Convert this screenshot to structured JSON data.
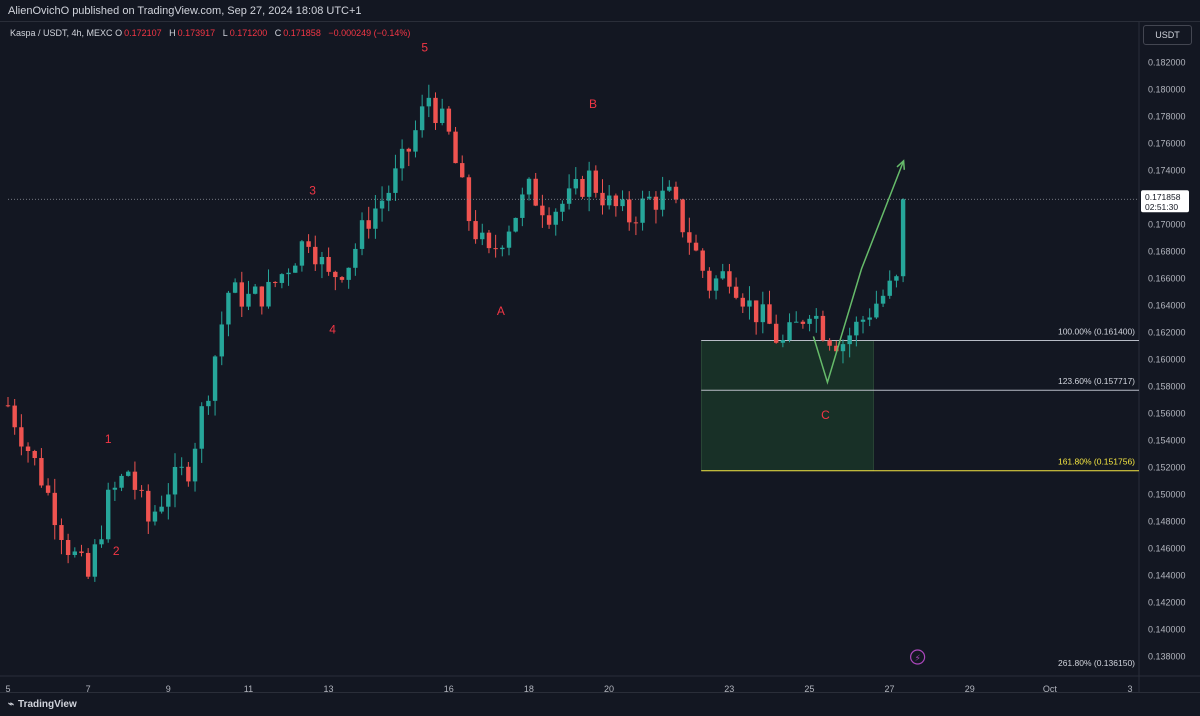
{
  "header": {
    "publisher_line": "AlienOvichO published on TradingView.com, Sep 27, 2024 18:08 UTC+1"
  },
  "legend": {
    "symbol": "Kaspa / USDT, 4h, MEXC",
    "o_label": "O",
    "o_value": "0.172107",
    "h_label": "H",
    "h_value": "0.173917",
    "l_label": "L",
    "l_value": "0.171200",
    "c_label": "C",
    "c_value": "0.171858",
    "change": "−0.000249 (−0.14%)"
  },
  "currency": "USDT",
  "footer": {
    "logo_text": "TradingView"
  },
  "colors": {
    "background": "#131722",
    "up": "#26a69a",
    "down": "#ef5350",
    "wave_label": "#f23645",
    "projection_arrow": "#66bb6a",
    "fib_highlight": "#f5e642",
    "zone_fill": "#1b3a2a"
  },
  "chart_data": {
    "type": "candlestick",
    "symbol": "Kaspa / USDT",
    "interval": "4h",
    "exchange": "MEXC",
    "ylim": [
      0.137,
      0.1835
    ],
    "y_ticks": [
      "0.182000",
      "0.180000",
      "0.178000",
      "0.176000",
      "0.174000",
      "0.172000",
      "0.170000",
      "0.168000",
      "0.166000",
      "0.164000",
      "0.162000",
      "0.160000",
      "0.158000",
      "0.156000",
      "0.154000",
      "0.152000",
      "0.150000",
      "0.148000",
      "0.146000",
      "0.144000",
      "0.142000",
      "0.140000",
      "0.138000"
    ],
    "x_ticks": [
      {
        "label": "5",
        "day": 5
      },
      {
        "label": "7",
        "day": 7
      },
      {
        "label": "9",
        "day": 9
      },
      {
        "label": "11",
        "day": 11
      },
      {
        "label": "13",
        "day": 13
      },
      {
        "label": "16",
        "day": 16
      },
      {
        "label": "18",
        "day": 18
      },
      {
        "label": "20",
        "day": 20
      },
      {
        "label": "23",
        "day": 23
      },
      {
        "label": "25",
        "day": 25
      },
      {
        "label": "27",
        "day": 27
      },
      {
        "label": "29",
        "day": 29
      },
      {
        "label": "Oct",
        "day": 31
      },
      {
        "label": "3",
        "day": 33
      }
    ],
    "x_range_days": [
      5,
      33.2
    ],
    "candle_path": [
      [
        5,
        0.1566
      ],
      [
        5.8,
        0.1515
      ],
      [
        6.5,
        0.1462
      ],
      [
        7,
        0.1438
      ],
      [
        7.5,
        0.1495
      ],
      [
        8,
        0.1518
      ],
      [
        8.5,
        0.148
      ],
      [
        9,
        0.1505
      ],
      [
        9.5,
        0.152
      ],
      [
        10,
        0.158
      ],
      [
        10.5,
        0.165
      ],
      [
        11,
        0.1645
      ],
      [
        11.5,
        0.165
      ],
      [
        12,
        0.167
      ],
      [
        12.5,
        0.1692
      ],
      [
        13,
        0.166
      ],
      [
        13.5,
        0.1672
      ],
      [
        14,
        0.1705
      ],
      [
        14.5,
        0.1725
      ],
      [
        15,
        0.1755
      ],
      [
        15.5,
        0.1795
      ],
      [
        16,
        0.1765
      ],
      [
        16.5,
        0.1705
      ],
      [
        17,
        0.1675
      ],
      [
        17.5,
        0.17
      ],
      [
        18,
        0.1725
      ],
      [
        18.5,
        0.171
      ],
      [
        19,
        0.1718
      ],
      [
        19.5,
        0.1735
      ],
      [
        20,
        0.1715
      ],
      [
        20.5,
        0.1705
      ],
      [
        21,
        0.1718
      ],
      [
        21.5,
        0.172
      ],
      [
        22,
        0.169
      ],
      [
        22.5,
        0.1655
      ],
      [
        23,
        0.1665
      ],
      [
        23.5,
        0.164
      ],
      [
        24,
        0.1625
      ],
      [
        24.3,
        0.161
      ],
      [
        24.7,
        0.1625
      ],
      [
        25,
        0.164
      ],
      [
        25.4,
        0.162
      ],
      [
        25.8,
        0.1612
      ],
      [
        26.2,
        0.1625
      ],
      [
        26.6,
        0.164
      ],
      [
        27,
        0.1652
      ],
      [
        27.3,
        0.166
      ],
      [
        27.5,
        0.1719
      ]
    ],
    "last_price": {
      "value": 0.171858,
      "label": "0.171858",
      "countdown": "02:51:30"
    },
    "fib_zone": {
      "day_start": 22.3,
      "day_end": 26.6,
      "top": 0.1614,
      "bottom": 0.151756
    },
    "fib_levels": [
      {
        "label": "100.00% (0.161400)",
        "value": 0.1614,
        "highlight": false
      },
      {
        "label": "123.60% (0.157717)",
        "value": 0.157717,
        "highlight": false
      },
      {
        "label": "161.80% (0.151756)",
        "value": 0.151756,
        "highlight": true
      },
      {
        "label": "261.80% (0.136150)",
        "value": 0.13615,
        "highlight": false,
        "label_only": true
      }
    ],
    "wave_labels": [
      {
        "text": "1",
        "day": 7.5,
        "price": 0.1538
      },
      {
        "text": "2",
        "day": 7.7,
        "price": 0.1455
      },
      {
        "text": "3",
        "day": 12.6,
        "price": 0.1722
      },
      {
        "text": "4",
        "day": 13.1,
        "price": 0.1619
      },
      {
        "text": "5",
        "day": 15.4,
        "price": 0.1828
      },
      {
        "text": "A",
        "day": 17.3,
        "price": 0.1633
      },
      {
        "text": "B",
        "day": 19.6,
        "price": 0.1786
      },
      {
        "text": "C",
        "day": 25.4,
        "price": 0.1556
      }
    ],
    "projection_path": [
      [
        25.1,
        0.1617
      ],
      [
        25.45,
        0.1583
      ],
      [
        26.3,
        0.1667
      ],
      [
        27.35,
        0.1747
      ]
    ]
  }
}
